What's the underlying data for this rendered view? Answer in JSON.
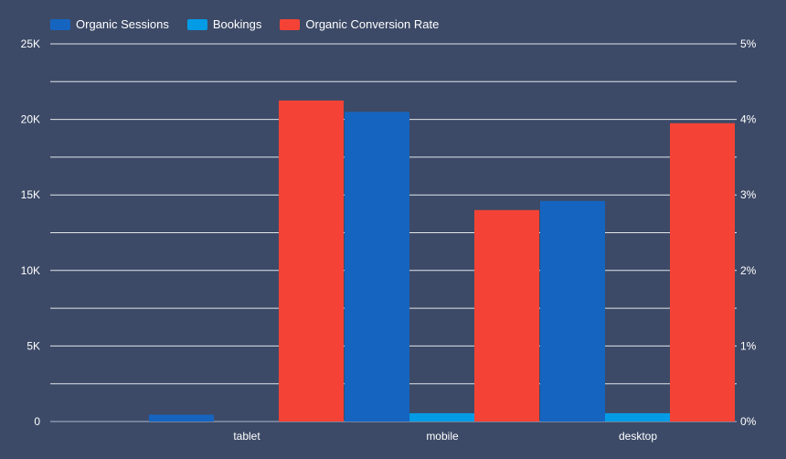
{
  "chart_data": {
    "type": "bar",
    "categories": [
      "tablet",
      "mobile",
      "desktop"
    ],
    "series": [
      {
        "name": "Organic Sessions",
        "axis": "left",
        "color": "#1565c0",
        "values": [
          450,
          20500,
          14600
        ]
      },
      {
        "name": "Bookings",
        "axis": "left",
        "color": "#039be5",
        "values": [
          0,
          550,
          550
        ]
      },
      {
        "name": "Organic Conversion Rate",
        "axis": "right",
        "color": "#f44336",
        "values": [
          4.25,
          2.8,
          3.95
        ]
      }
    ],
    "left_axis": {
      "ylim": [
        0,
        25000
      ],
      "ticks": [
        0,
        5000,
        10000,
        15000,
        20000,
        25000
      ],
      "tick_labels": [
        "0",
        "5K",
        "10K",
        "15K",
        "20K",
        "25K"
      ]
    },
    "right_axis": {
      "ylim": [
        0,
        5
      ],
      "ticks": [
        0,
        1,
        2,
        3,
        4,
        5
      ],
      "tick_labels": [
        "0%",
        "1%",
        "2%",
        "3%",
        "4%",
        "5%"
      ]
    },
    "grid": true,
    "legend": "top-left"
  }
}
